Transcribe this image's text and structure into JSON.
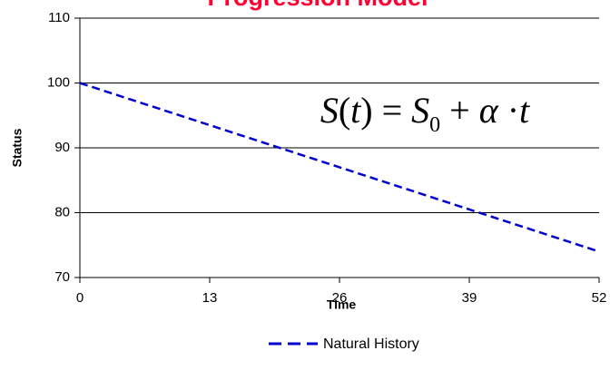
{
  "chart_data": {
    "type": "line",
    "title": "Progression Model",
    "title_color": "#ff0033",
    "xlabel": "Time",
    "ylabel": "Status",
    "xlim": [
      0,
      52
    ],
    "ylim": [
      70,
      110
    ],
    "xticks": [
      0,
      13,
      26,
      39,
      52
    ],
    "yticks": [
      70,
      80,
      90,
      100,
      110
    ],
    "grid": "horizontal",
    "legend_position": "bottom",
    "series": [
      {
        "name": "Natural History",
        "color": "#0000cc",
        "line_style": "dashed",
        "x": [
          0,
          52
        ],
        "y": [
          100,
          74
        ]
      }
    ],
    "annotation": {
      "S": "S",
      "t": "t",
      "eq": "=",
      "S0": "S",
      "sub0": "0",
      "plus": "+",
      "alpha": "α",
      "dot": "·",
      "t2": "t"
    }
  }
}
